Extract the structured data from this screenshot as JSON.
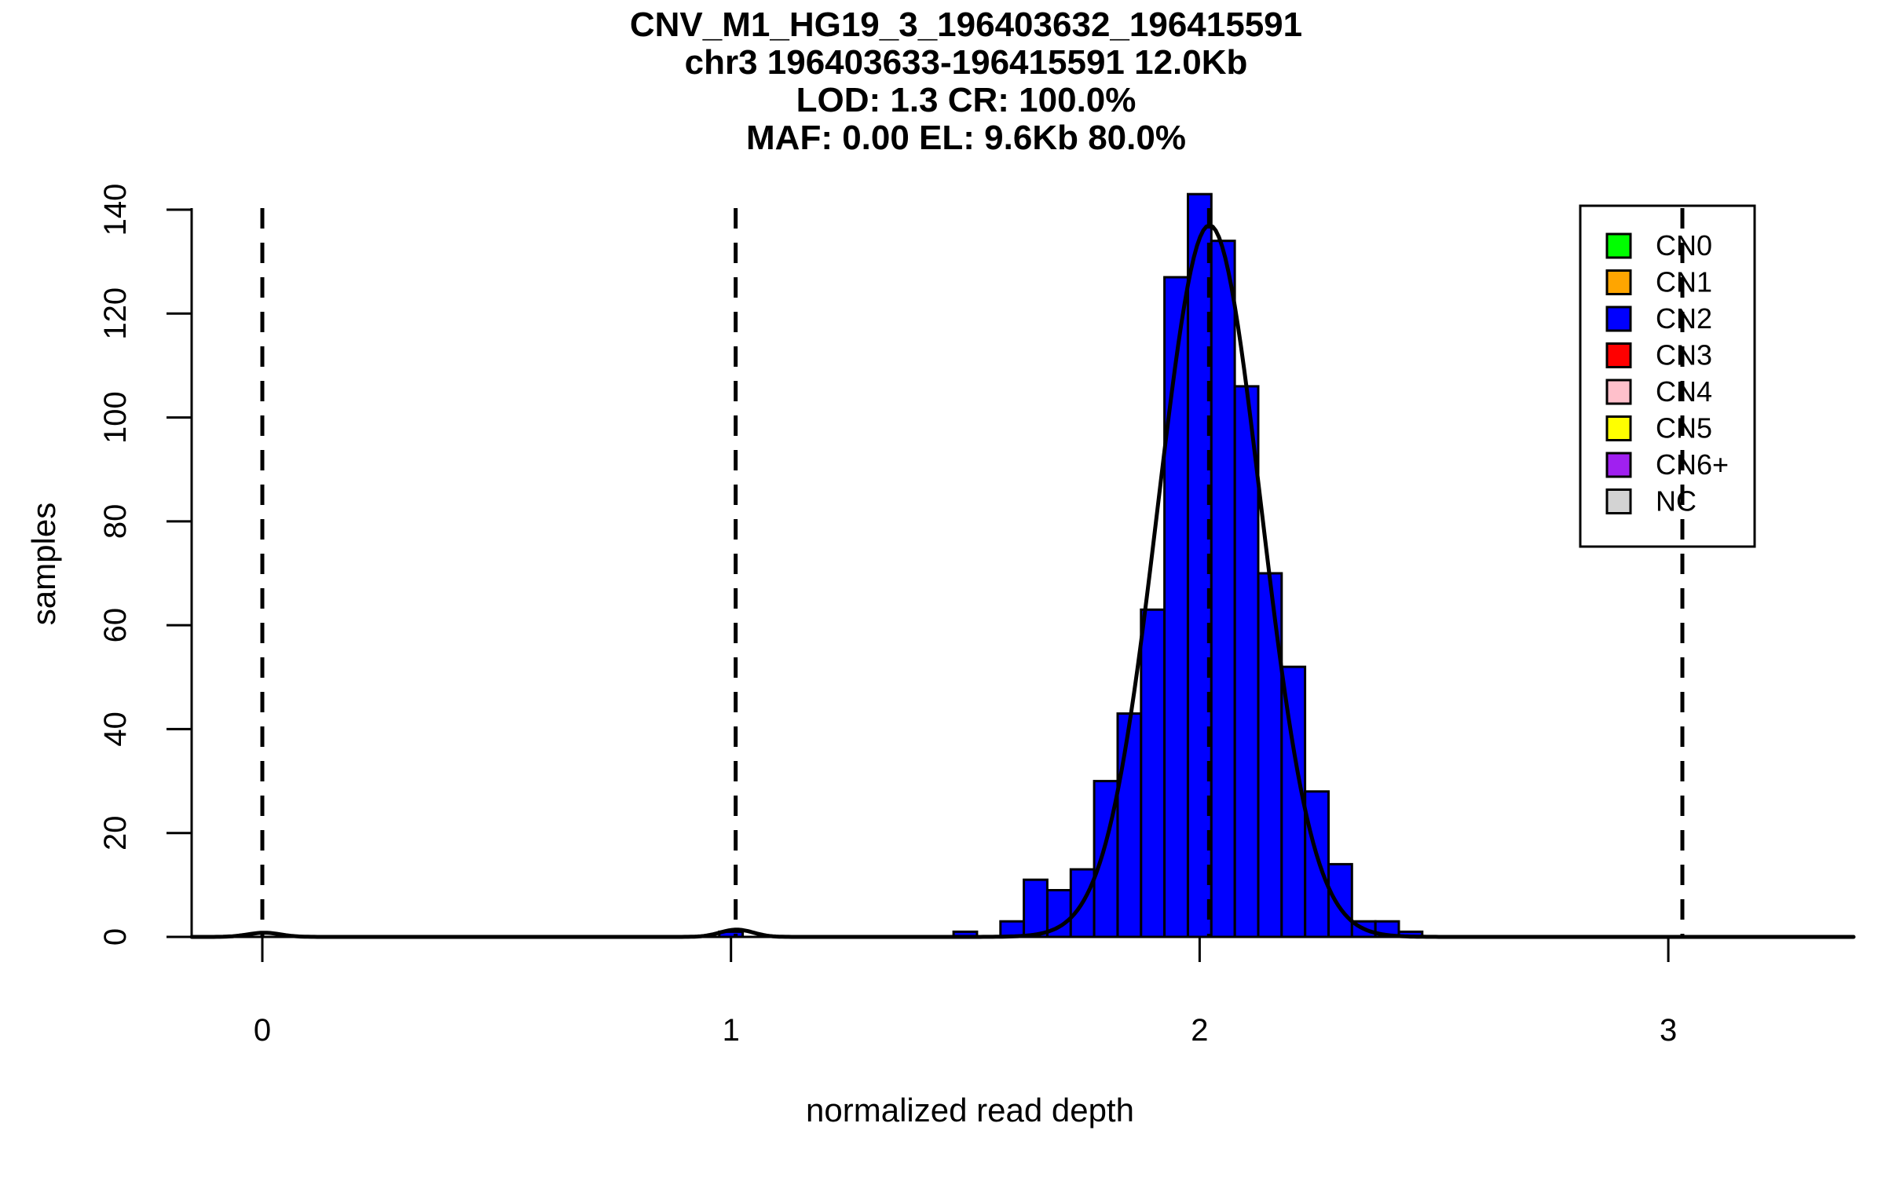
{
  "title_lines": [
    "CNV_M1_HG19_3_196403632_196415591",
    "chr3 196403633-196415591 12.0Kb",
    "LOD: 1.3 CR: 100.0%",
    "MAF: 0.00 EL: 9.6Kb 80.0%"
  ],
  "axes": {
    "x_label": "normalized read depth",
    "y_label": "samples",
    "x_ticks": [
      0,
      1,
      2,
      3
    ],
    "y_ticks": [
      0,
      20,
      40,
      60,
      80,
      100,
      120,
      140
    ]
  },
  "colors": {
    "background": "#ffffff",
    "bar_fill": "#0000ff",
    "bar_border": "#000000",
    "curve": "#000000",
    "axis": "#000000",
    "dashed_line": "#000000",
    "legend_border": "#000000",
    "legend_background": "#ffffff"
  },
  "chart_data": {
    "type": "bar",
    "subtype": "histogram-with-density",
    "title": "CNV_M1_HG19_3_196403632_196415591",
    "xlabel": "normalized read depth",
    "ylabel": "samples",
    "xlim": [
      -0.15,
      3.4
    ],
    "ylim": [
      0,
      140
    ],
    "grid": false,
    "bin_width": 0.05,
    "bins": [
      {
        "center": 1.0,
        "count": 1
      },
      {
        "center": 1.5,
        "count": 1
      },
      {
        "center": 1.55,
        "count": 0
      },
      {
        "center": 1.6,
        "count": 3
      },
      {
        "center": 1.65,
        "count": 11
      },
      {
        "center": 1.7,
        "count": 9
      },
      {
        "center": 1.75,
        "count": 13
      },
      {
        "center": 1.8,
        "count": 30
      },
      {
        "center": 1.85,
        "count": 43
      },
      {
        "center": 1.9,
        "count": 63
      },
      {
        "center": 1.95,
        "count": 127
      },
      {
        "center": 2.0,
        "count": 143
      },
      {
        "center": 2.05,
        "count": 134
      },
      {
        "center": 2.1,
        "count": 106
      },
      {
        "center": 2.15,
        "count": 70
      },
      {
        "center": 2.2,
        "count": 52
      },
      {
        "center": 2.25,
        "count": 28
      },
      {
        "center": 2.3,
        "count": 14
      },
      {
        "center": 2.35,
        "count": 3
      },
      {
        "center": 2.4,
        "count": 3
      },
      {
        "center": 2.45,
        "count": 1
      }
    ],
    "density_curve": {
      "components": [
        {
          "mu": 2.021,
          "sigma": 0.11,
          "amplitude": 137
        },
        {
          "mu": 1.012,
          "sigma": 0.035,
          "amplitude": 1.4
        },
        {
          "mu": 0.004,
          "sigma": 0.035,
          "amplitude": 0.8
        }
      ]
    },
    "copy_number_dashed_lines": [
      {
        "label": "CN0",
        "x": 0.0
      },
      {
        "label": "CN1",
        "x": 1.01
      },
      {
        "label": "CN2",
        "x": 2.02
      },
      {
        "label": "CN3",
        "x": 3.03
      }
    ],
    "legend": {
      "position": "top-right",
      "entries": [
        {
          "label": "CN0",
          "color": "#00ff00"
        },
        {
          "label": "CN1",
          "color": "#ffa500"
        },
        {
          "label": "CN2",
          "color": "#0000ff"
        },
        {
          "label": "CN3",
          "color": "#ff0000"
        },
        {
          "label": "CN4",
          "color": "#ffc0cb"
        },
        {
          "label": "CN5",
          "color": "#ffff00"
        },
        {
          "label": "CN6+",
          "color": "#a020f0"
        },
        {
          "label": "NC",
          "color": "#d3d3d3"
        }
      ]
    }
  }
}
